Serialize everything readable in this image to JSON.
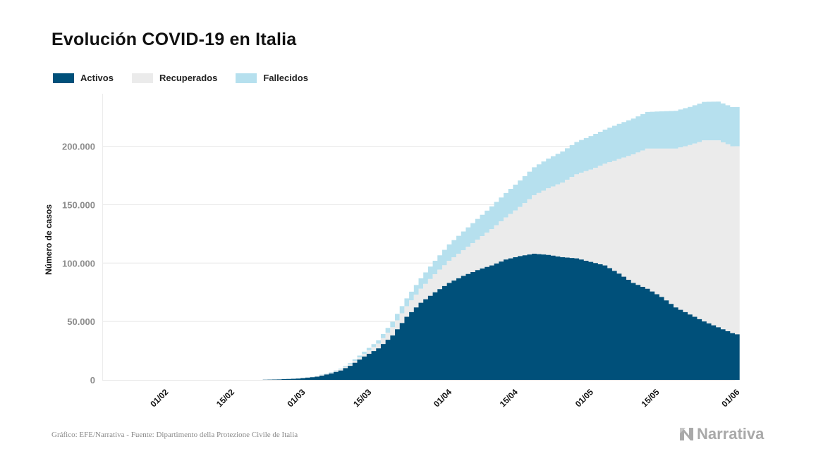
{
  "title": "Evolución COVID-19 en Italia",
  "source": "Gráfico: EFE/Narrativa - Fuente: Dipartimento della Protezione Civile de Italia",
  "brand": "Narrativa",
  "colors": {
    "activos": "#00507a",
    "recuperados": "#ebebeb",
    "fallecidos": "#b6e0ee",
    "grid": "#e8e8e8",
    "axis_text": "#8c8c8c"
  },
  "legend": [
    {
      "label": "Activos",
      "color": "#00507a"
    },
    {
      "label": "Recuperados",
      "color": "#ebebeb"
    },
    {
      "label": "Fallecidos",
      "color": "#b6e0ee"
    }
  ],
  "chart_data": {
    "type": "area",
    "stacked": true,
    "step": true,
    "ylabel": "Número de casos",
    "ylim": [
      0,
      245000
    ],
    "y_ticks": [
      0,
      50000,
      100000,
      150000,
      200000
    ],
    "y_tick_labels": [
      "0",
      "50.000",
      "100.000",
      "150.000",
      "200.000"
    ],
    "x_range": [
      "2020-01-20",
      "2020-06-02"
    ],
    "x_ticks": [
      "2020-02-01",
      "2020-02-15",
      "2020-03-01",
      "2020-03-15",
      "2020-04-01",
      "2020-04-15",
      "2020-05-01",
      "2020-05-15",
      "2020-06-01"
    ],
    "x_tick_labels": [
      "01/02",
      "15/02",
      "01/03",
      "15/03",
      "01/04",
      "15/04",
      "01/05",
      "15/05",
      "01/06"
    ],
    "grid": true,
    "legend_position": "top-left",
    "keypoints": {
      "dates": [
        "2020-02-23",
        "2020-02-26",
        "2020-03-01",
        "2020-03-05",
        "2020-03-08",
        "2020-03-10",
        "2020-03-12",
        "2020-03-15",
        "2020-03-18",
        "2020-03-21",
        "2020-03-24",
        "2020-03-27",
        "2020-03-30",
        "2020-04-02",
        "2020-04-05",
        "2020-04-08",
        "2020-04-11",
        "2020-04-14",
        "2020-04-17",
        "2020-04-20",
        "2020-04-23",
        "2020-04-26",
        "2020-04-29",
        "2020-05-02",
        "2020-05-05",
        "2020-05-08",
        "2020-05-11",
        "2020-05-14",
        "2020-05-17",
        "2020-05-20",
        "2020-05-23",
        "2020-05-26",
        "2020-05-29",
        "2020-06-01",
        "2020-06-02"
      ],
      "series": [
        {
          "name": "Activos",
          "values": [
            130,
            400,
            1100,
            2700,
            5500,
            8000,
            12000,
            20000,
            27000,
            38000,
            54000,
            66000,
            75000,
            83000,
            89000,
            94000,
            98000,
            103000,
            106000,
            108000,
            107000,
            105000,
            104000,
            101000,
            98000,
            91000,
            83000,
            78000,
            71000,
            62000,
            56000,
            50000,
            45000,
            40000,
            39000
          ]
        },
        {
          "name": "Recuperados",
          "values": [
            0,
            50,
            100,
            500,
            700,
            1000,
            1300,
            2300,
            4000,
            7000,
            9000,
            12000,
            15500,
            19000,
            22000,
            26000,
            31000,
            36000,
            42000,
            50000,
            57000,
            64000,
            72000,
            79000,
            87000,
            98000,
            110000,
            120000,
            127000,
            136000,
            145000,
            155000,
            160000,
            160000,
            161000
          ]
        },
        {
          "name": "Fallecidos",
          "values": [
            0,
            10,
            40,
            150,
            350,
            600,
            1000,
            1800,
            2900,
            4800,
            6800,
            9000,
            11500,
            14000,
            16000,
            17800,
            19500,
            21000,
            22700,
            24000,
            25500,
            26600,
            27700,
            28700,
            29300,
            30200,
            30700,
            31400,
            31900,
            32400,
            32700,
            33000,
            33300,
            33500,
            33600
          ]
        }
      ]
    }
  }
}
